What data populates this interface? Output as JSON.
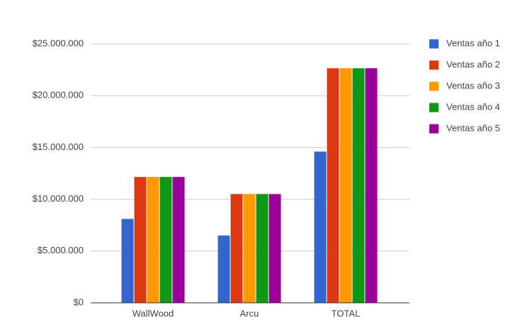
{
  "chart_data": {
    "type": "bar",
    "categories": [
      "WallWood",
      "Arcu",
      "TOTAL"
    ],
    "series": [
      {
        "name": "Ventas año 1",
        "color": "#3366cc",
        "values": [
          8100000,
          6500000,
          14600000
        ]
      },
      {
        "name": "Ventas año 2",
        "color": "#dc3912",
        "values": [
          12150000,
          10500000,
          22650000
        ]
      },
      {
        "name": "Ventas año 3",
        "color": "#ff9900",
        "values": [
          12150000,
          10500000,
          22650000
        ]
      },
      {
        "name": "Ventas año 4",
        "color": "#109618",
        "values": [
          12150000,
          10500000,
          22650000
        ]
      },
      {
        "name": "Ventas año 5",
        "color": "#990099",
        "values": [
          12150000,
          10500000,
          22650000
        ]
      }
    ],
    "ylim": [
      0,
      25000000
    ],
    "yticks": [
      {
        "value": 0,
        "label": "$0"
      },
      {
        "value": 5000000,
        "label": "$5.000.000"
      },
      {
        "value": 10000000,
        "label": "$10.000.000"
      },
      {
        "value": 15000000,
        "label": "$15.000.000"
      },
      {
        "value": 20000000,
        "label": "$20.000.000"
      },
      {
        "value": 25000000,
        "label": "$25.000.000"
      }
    ],
    "grid": true,
    "legend": "right"
  }
}
